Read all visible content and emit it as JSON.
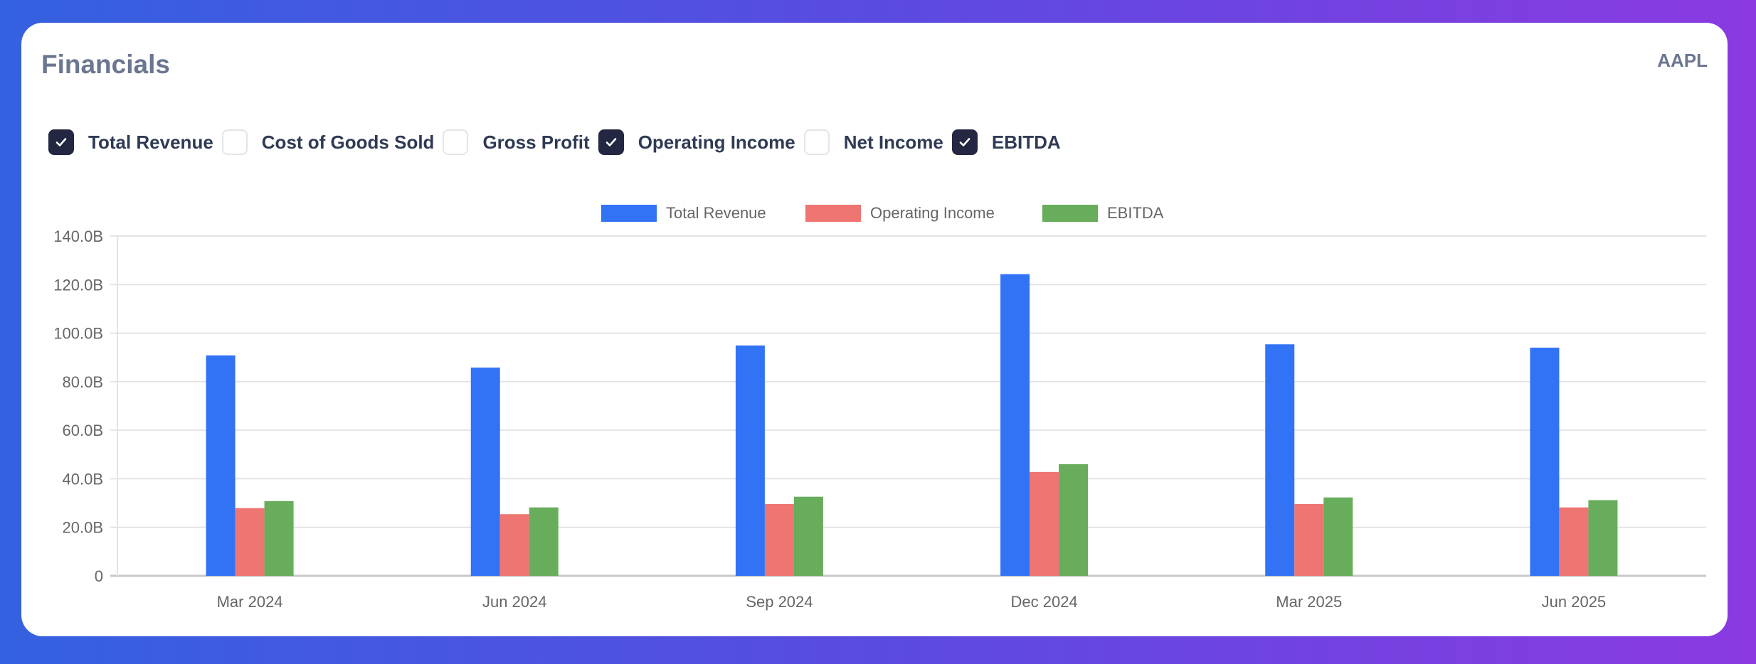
{
  "header": {
    "title": "Financials",
    "ticker": "AAPL"
  },
  "toggles": [
    {
      "label": "Total Revenue",
      "checked": true
    },
    {
      "label": "Cost of Goods Sold",
      "checked": false
    },
    {
      "label": "Gross Profit",
      "checked": false
    },
    {
      "label": "Operating Income",
      "checked": true
    },
    {
      "label": "Net Income",
      "checked": false
    },
    {
      "label": "EBITDA",
      "checked": true
    }
  ],
  "chart_data": {
    "type": "bar",
    "categories": [
      "Mar 2024",
      "Jun 2024",
      "Sep 2024",
      "Dec 2024",
      "Mar 2025",
      "Jun 2025"
    ],
    "series": [
      {
        "name": "Total Revenue",
        "color": "#3273f6",
        "values": [
          90.8,
          85.8,
          94.9,
          124.3,
          95.4,
          94.0
        ]
      },
      {
        "name": "Operating Income",
        "color": "#ee7571",
        "values": [
          27.9,
          25.4,
          29.6,
          42.8,
          29.6,
          28.2
        ]
      },
      {
        "name": "EBITDA",
        "color": "#67ad5b",
        "values": [
          30.8,
          28.2,
          32.6,
          46.0,
          32.3,
          31.2
        ]
      }
    ],
    "ylim": [
      0,
      140
    ],
    "yticks": [
      0,
      20,
      40,
      60,
      80,
      100,
      120,
      140
    ],
    "ytick_labels": [
      "0",
      "20.0B",
      "40.0B",
      "60.0B",
      "80.0B",
      "100.0B",
      "120.0B",
      "140.0B"
    ],
    "unit": "B",
    "grid": true,
    "legend_position": "top"
  }
}
